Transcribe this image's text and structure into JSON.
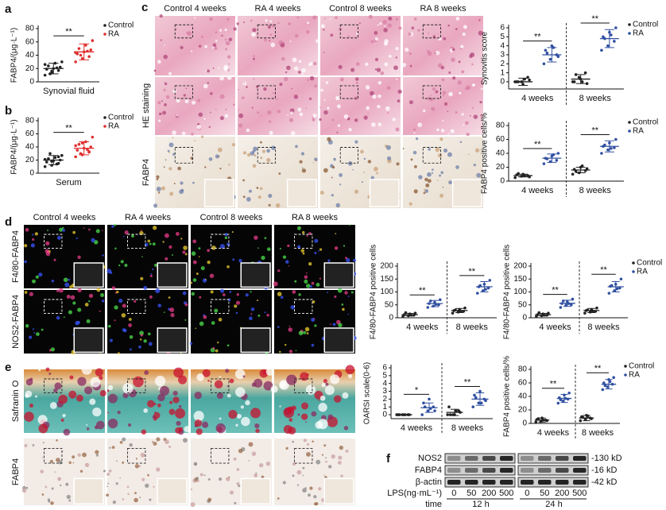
{
  "figure": {
    "panels": [
      "a",
      "b",
      "c",
      "d",
      "e",
      "f"
    ],
    "c_columns": [
      "Control 4 weeks",
      "RA 4 weeks",
      "Control 8 weeks",
      "RA 8 weeks"
    ],
    "c_rows": [
      "HE staining",
      "FABP4"
    ],
    "d_columns": [
      "Control 4 weeks",
      "RA 4 weeks",
      "Control 8 weeks",
      "RA 8 weeks"
    ],
    "d_rows": [
      "F4/80-FABP4",
      "NOS2-FABP4"
    ],
    "e_rows": [
      "Safranin O",
      "FABP4"
    ],
    "f_bands": [
      "NOS2",
      "FABP4",
      "β-actin"
    ],
    "f_sizes": [
      "-130 kD",
      "-16 kD",
      "-42 kD"
    ],
    "f_lps_label": "LPS(ng·mL⁻¹)",
    "f_doses": [
      "0",
      "50",
      "200",
      "500",
      "0",
      "50",
      "200",
      "500"
    ],
    "f_time_label": "time",
    "f_times": [
      "12 h",
      "24 h"
    ]
  },
  "chart_data": [
    {
      "type": "dotplot",
      "ylabel": "FABP4/(μg·L⁻¹)",
      "categories": [
        "Synovial fluid"
      ],
      "ylim": [
        0,
        80
      ],
      "yticks": [
        0,
        20,
        40,
        60,
        80
      ],
      "legend": true,
      "significance": [
        "**"
      ],
      "series": [
        {
          "name": "Control",
          "color": "#222222",
          "values": [
            [
              10,
              14,
              17,
              19,
              20,
              22,
              24,
              28,
              30,
              12,
              21,
              26,
              16
            ]
          ],
          "mean": [
            20
          ],
          "sd": [
            8
          ]
        },
        {
          "name": "RA",
          "color": "#e03030",
          "values": [
            [
              30,
              35,
              38,
              42,
              45,
              48,
              50,
              55,
              62,
              40,
              46,
              44
            ]
          ],
          "mean": [
            45
          ],
          "sd": [
            12
          ]
        }
      ]
    },
    {
      "type": "dotplot",
      "ylabel": "FABP4/(μg·L⁻¹)",
      "categories": [
        "Serum"
      ],
      "ylim": [
        0,
        80
      ],
      "yticks": [
        0,
        20,
        40,
        60,
        80
      ],
      "legend": true,
      "significance": [
        "**"
      ],
      "series": [
        {
          "name": "Control",
          "color": "#222222",
          "values": [
            [
              10,
              12,
              15,
              17,
              19,
              20,
              22,
              24,
              27,
              30,
              14,
              21,
              18,
              25
            ]
          ],
          "mean": [
            20
          ],
          "sd": [
            7
          ]
        },
        {
          "name": "RA",
          "color": "#e03030",
          "values": [
            [
              25,
              28,
              32,
              35,
              38,
              40,
              44,
              48,
              55,
              30,
              36,
              42,
              46,
              33
            ]
          ],
          "mean": [
            38
          ],
          "sd": [
            10
          ]
        }
      ]
    },
    {
      "type": "dotplot",
      "ylabel": "Synovitis score",
      "categories": [
        "4 weeks",
        "8 weeks"
      ],
      "ylim": [
        -0.8,
        6
      ],
      "yticks": [
        0,
        1,
        2,
        3,
        4,
        5,
        6
      ],
      "legend": true,
      "significance": [
        "**",
        "**"
      ],
      "series": [
        {
          "name": "Control",
          "color": "#222222",
          "values": [
            [
              0,
              0,
              0.5,
              0,
              -0.3,
              0.2,
              0,
              0.3
            ],
            [
              0,
              0.5,
              1,
              0,
              0.3,
              -0.2,
              0.8,
              0
            ]
          ],
          "mean": [
            0,
            0.3
          ],
          "sd": [
            0.4,
            0.5
          ]
        },
        {
          "name": "RA",
          "color": "#3050a0",
          "values": [
            [
              2,
              2.5,
              3,
              3.5,
              4,
              2.8,
              3.2,
              3.8
            ],
            [
              3.5,
              4,
              4.5,
              5,
              5.5,
              6,
              4.8,
              5.2
            ]
          ],
          "mean": [
            3,
            4.8
          ],
          "sd": [
            0.8,
            1
          ]
        }
      ]
    },
    {
      "type": "dotplot",
      "ylabel": "FABP4 positive cells/%",
      "categories": [
        "4 weeks",
        "8 weeks"
      ],
      "ylim": [
        0,
        80
      ],
      "yticks": [
        0,
        20,
        40,
        60,
        80
      ],
      "legend": true,
      "significance": [
        "**",
        "**"
      ],
      "series": [
        {
          "name": "Control",
          "color": "#222222",
          "values": [
            [
              5,
              7,
              8,
              9,
              10,
              6,
              11,
              8
            ],
            [
              10,
              12,
              15,
              17,
              20,
              18,
              14,
              22
            ]
          ],
          "mean": [
            8,
            16
          ],
          "sd": [
            2,
            4
          ]
        },
        {
          "name": "RA",
          "color": "#3050a0",
          "values": [
            [
              25,
              28,
              30,
              33,
              36,
              40,
              32,
              38
            ],
            [
              40,
              45,
              48,
              50,
              55,
              60,
              52,
              47
            ]
          ],
          "mean": [
            33,
            50
          ],
          "sd": [
            6,
            8
          ]
        }
      ]
    },
    {
      "type": "dotplot",
      "ylabel": "F4/80-FABP4 positive cells",
      "categories": [
        "4 weeks",
        "8 weeks"
      ],
      "ylim": [
        0,
        200
      ],
      "yticks": [
        0,
        50,
        100,
        150,
        200
      ],
      "legend": false,
      "significance": [
        "**",
        "**"
      ],
      "series": [
        {
          "name": "Control",
          "color": "#222222",
          "values": [
            [
              5,
              8,
              10,
              12,
              15,
              18,
              20,
              10
            ],
            [
              18,
              22,
              25,
              28,
              32,
              38,
              30,
              26
            ]
          ],
          "mean": [
            12,
            28
          ],
          "sd": [
            5,
            8
          ]
        },
        {
          "name": "RA",
          "color": "#3050a0",
          "values": [
            [
              40,
              45,
              50,
              55,
              60,
              70,
              65,
              52
            ],
            [
              95,
              105,
              115,
              120,
              130,
              145,
              125,
              110
            ]
          ],
          "mean": [
            55,
            120
          ],
          "sd": [
            12,
            20
          ]
        }
      ]
    },
    {
      "type": "dotplot",
      "ylabel": "F4/80-FABP4 positive cells",
      "categories": [
        "4 weeks",
        "8 weeks"
      ],
      "ylim": [
        0,
        200
      ],
      "yticks": [
        0,
        50,
        100,
        150,
        200
      ],
      "legend": true,
      "significance": [
        "**",
        "**"
      ],
      "series": [
        {
          "name": "Control",
          "color": "#222222",
          "values": [
            [
              5,
              8,
              10,
              12,
              15,
              18,
              20,
              10
            ],
            [
              18,
              22,
              25,
              28,
              32,
              38,
              30,
              26
            ]
          ],
          "mean": [
            12,
            28
          ],
          "sd": [
            5,
            8
          ]
        },
        {
          "name": "RA",
          "color": "#3050a0",
          "values": [
            [
              40,
              48,
              50,
              55,
              62,
              72,
              65,
              55
            ],
            [
              95,
              105,
              115,
              122,
              130,
              150,
              125,
              112
            ]
          ],
          "mean": [
            56,
            120
          ],
          "sd": [
            12,
            20
          ]
        }
      ]
    },
    {
      "type": "dotplot",
      "ylabel": "OARSI scale(0-6)",
      "categories": [
        "4 weeks",
        "8 weeks"
      ],
      "ylim": [
        -0.5,
        6
      ],
      "yticks": [
        0,
        1,
        2,
        3,
        4,
        5,
        6
      ],
      "legend": false,
      "significance": [
        "*",
        "**"
      ],
      "series": [
        {
          "name": "Control",
          "color": "#222222",
          "values": [
            [
              0,
              0,
              0,
              0,
              0,
              0,
              0,
              0
            ],
            [
              0,
              0,
              0.5,
              1,
              0,
              0.3,
              0,
              0.5
            ]
          ],
          "mean": [
            0,
            0.3
          ],
          "sd": [
            0,
            0.4
          ]
        },
        {
          "name": "RA",
          "color": "#3050a0",
          "values": [
            [
              0,
              0.5,
              1,
              1.5,
              2,
              0.5,
              1,
              0.8
            ],
            [
              1,
              1.5,
              2,
              2.5,
              3,
              1.8,
              2.2,
              1.5
            ]
          ],
          "mean": [
            0.9,
            2
          ],
          "sd": [
            0.6,
            0.8
          ]
        }
      ]
    },
    {
      "type": "dotplot",
      "ylabel": "FABP4 positive cells/%",
      "categories": [
        "4 weeks",
        "8 weeks"
      ],
      "ylim": [
        0,
        80
      ],
      "yticks": [
        0,
        20,
        40,
        60,
        80
      ],
      "legend": true,
      "significance": [
        "**",
        "**"
      ],
      "series": [
        {
          "name": "Control",
          "color": "#222222",
          "values": [
            [
              2,
              3,
              5,
              6,
              8,
              4,
              7,
              5
            ],
            [
              4,
              6,
              8,
              10,
              12,
              7,
              9,
              11
            ]
          ],
          "mean": [
            5,
            8
          ],
          "sd": [
            3,
            4
          ]
        },
        {
          "name": "RA",
          "color": "#3050a0",
          "values": [
            [
              30,
              33,
              36,
              38,
              42,
              45,
              35,
              37
            ],
            [
              50,
              54,
              58,
              60,
              65,
              68,
              56,
              62
            ]
          ],
          "mean": [
            37,
            58
          ],
          "sd": [
            6,
            7
          ]
        }
      ]
    }
  ]
}
